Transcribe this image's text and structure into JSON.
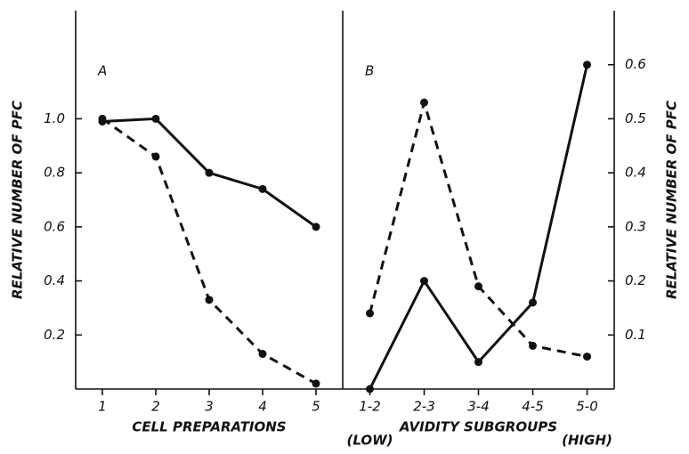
{
  "chart_data": [
    {
      "type": "line",
      "label": "A",
      "x_label": "CELL PREPARATIONS",
      "y_label": "RELATIVE NUMBER OF PFC",
      "y_axis_side": "left",
      "categories": [
        "1",
        "2",
        "3",
        "4",
        "5"
      ],
      "series": [
        {
          "style": "solid",
          "color": "#111111",
          "values": [
            0.99,
            1.0,
            0.8,
            0.74,
            0.6
          ]
        },
        {
          "style": "dashed",
          "color": "#111111",
          "values": [
            1.0,
            0.86,
            0.33,
            0.13,
            0.02
          ]
        }
      ],
      "ylim": [
        0,
        1.4
      ],
      "yticks": [
        0.2,
        0.4,
        0.6,
        0.8,
        {
          "value": 1,
          "label": "1.0"
        }
      ]
    },
    {
      "type": "line",
      "label": "B",
      "x_label": "AVIDITY SUBGROUPS",
      "y_label": "RELATIVE NUMBER OF PFC",
      "y_axis_side": "right",
      "categories": [
        "1-2",
        "2-3",
        "3-4",
        "4-5",
        "5-0"
      ],
      "annotations": [
        "(LOW)",
        "(HIGH)"
      ],
      "series": [
        {
          "style": "solid",
          "color": "#111111",
          "values": [
            0,
            0.2,
            0.05,
            0.16,
            0.6
          ]
        },
        {
          "style": "dashed",
          "color": "#111111",
          "values": [
            0.14,
            0.53,
            0.19,
            0.08,
            0.06
          ]
        }
      ],
      "ylim": [
        0,
        0.7
      ],
      "yticks": [
        0.1,
        0.2,
        0.3,
        0.4,
        0.5,
        0.6
      ]
    }
  ]
}
